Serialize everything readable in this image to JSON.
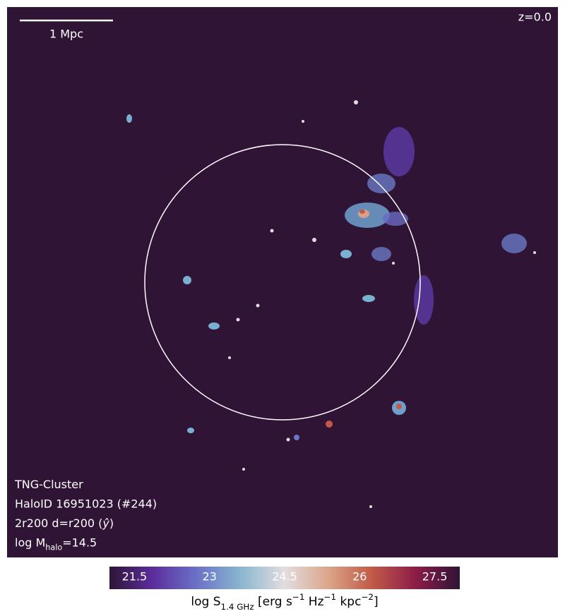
{
  "chart_data": {
    "type": "image",
    "scale_bar_label": "1 Mpc",
    "redshift_label": "z=0.0",
    "info_lines": [
      [
        {
          "text": "TNG-Cluster"
        }
      ],
      [
        {
          "text": "HaloID 16951023 (#244)"
        }
      ],
      [
        {
          "text": "2r200 d=r200 ("
        },
        {
          "text": "ŷ",
          "style": "italic"
        },
        {
          "text": ")"
        }
      ],
      [
        {
          "text": "log M"
        },
        {
          "text": "halo",
          "shift": "sub"
        },
        {
          "text": "=14.5"
        }
      ]
    ],
    "colorbar": {
      "clim": [
        21,
        28
      ],
      "ticks": [
        21.5,
        23.0,
        24.5,
        26.0,
        27.5
      ],
      "colors": [
        "#2f1436",
        "#5c2e9e",
        "#6b72c8",
        "#89b6cf",
        "#e2dde0",
        "#dca58a",
        "#c15a47",
        "#8c1c48",
        "#2f1436"
      ],
      "label": [
        {
          "text": "log S"
        },
        {
          "text": "1.4 GHz",
          "shift": "sub"
        },
        {
          "text": " [erg s"
        },
        {
          "text": "−1",
          "shift": "super"
        },
        {
          "text": " Hz"
        },
        {
          "text": "−1",
          "shift": "super"
        },
        {
          "text": " kpc"
        },
        {
          "text": "−2",
          "shift": "super"
        },
        {
          "text": "]"
        }
      ]
    }
  }
}
